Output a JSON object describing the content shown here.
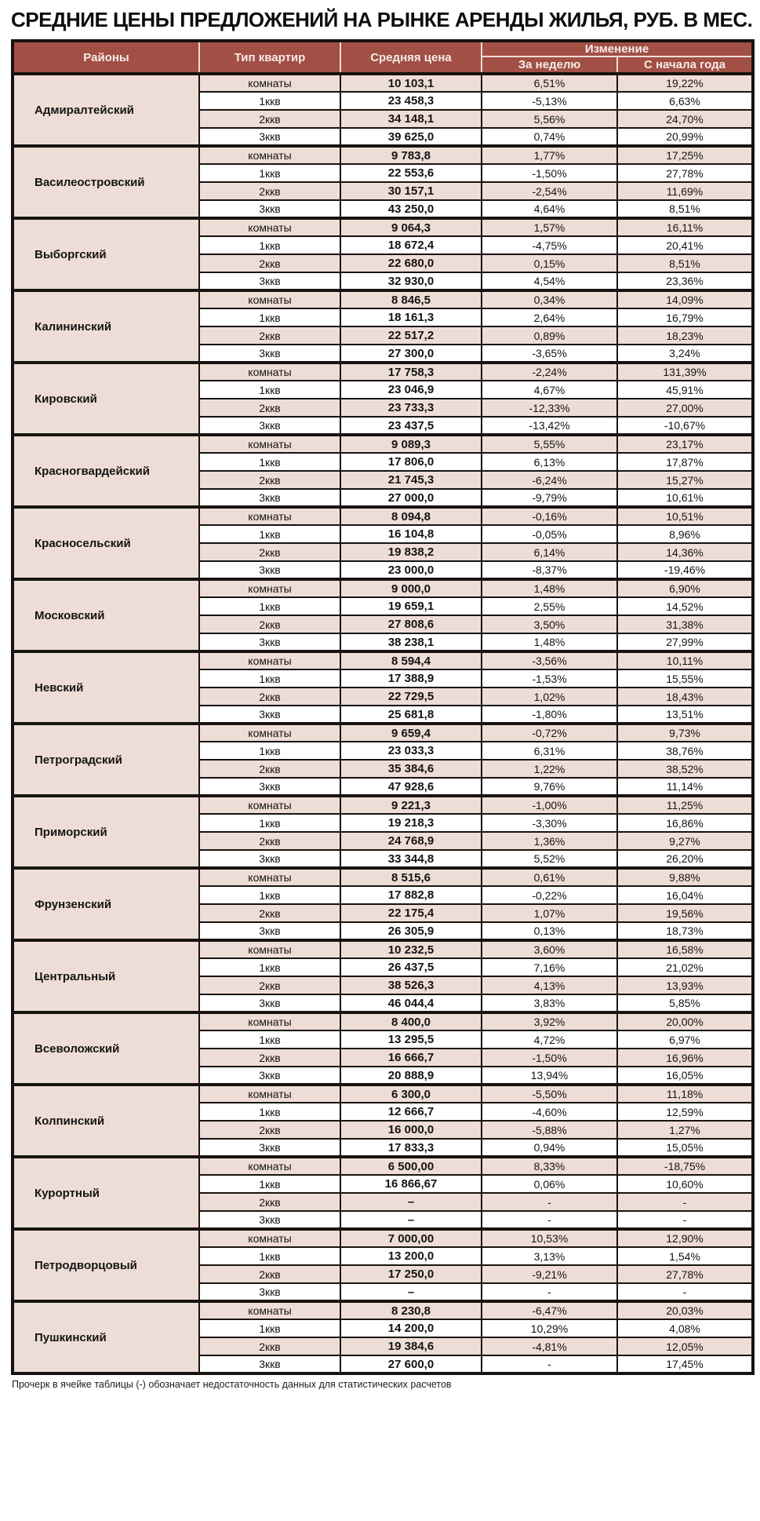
{
  "title": "СРЕДНИЕ ЦЕНЫ ПРЕДЛОЖЕНИЙ НА РЫНКЕ АРЕНДЫ ЖИЛЬЯ, РУБ. В МЕС.",
  "footnote": "Прочерк в ячейке таблицы (-) обозначает недостаточность данных для статистических расчетов",
  "colors": {
    "header_bg": "#a24f46",
    "header_text": "#f6ece7",
    "row_pink": "#eeddd6",
    "row_white": "#ffffff",
    "border_dark": "#171310"
  },
  "table": {
    "headers": {
      "district": "Районы",
      "apartment_type": "Тип квартир",
      "avg_price": "Средняя цена",
      "change_group": "Изменение",
      "change_week": "За неделю",
      "change_ytd": "С начала года"
    },
    "row_types": [
      "комнаты",
      "1ккв",
      "2ккв",
      "3ккв"
    ],
    "districts": [
      {
        "name": "Адмиралтейский",
        "rows": [
          [
            "10 103,1",
            "6,51%",
            "19,22%"
          ],
          [
            "23 458,3",
            "-5,13%",
            "6,63%"
          ],
          [
            "34 148,1",
            "5,56%",
            "24,70%"
          ],
          [
            "39 625,0",
            "0,74%",
            "20,99%"
          ]
        ]
      },
      {
        "name": "Василеостровский",
        "rows": [
          [
            "9 783,8",
            "1,77%",
            "17,25%"
          ],
          [
            "22 553,6",
            "-1,50%",
            "27,78%"
          ],
          [
            "30 157,1",
            "-2,54%",
            "11,69%"
          ],
          [
            "43 250,0",
            "4,64%",
            "8,51%"
          ]
        ]
      },
      {
        "name": "Выборгский",
        "rows": [
          [
            "9 064,3",
            "1,57%",
            "16,11%"
          ],
          [
            "18 672,4",
            "-4,75%",
            "20,41%"
          ],
          [
            "22 680,0",
            "0,15%",
            "8,51%"
          ],
          [
            "32 930,0",
            "4,54%",
            "23,36%"
          ]
        ]
      },
      {
        "name": "Калининский",
        "rows": [
          [
            "8 846,5",
            "0,34%",
            "14,09%"
          ],
          [
            "18 161,3",
            "2,64%",
            "16,79%"
          ],
          [
            "22 517,2",
            "0,89%",
            "18,23%"
          ],
          [
            "27 300,0",
            "-3,65%",
            "3,24%"
          ]
        ]
      },
      {
        "name": "Кировский",
        "rows": [
          [
            "17 758,3",
            "-2,24%",
            "131,39%"
          ],
          [
            "23 046,9",
            "4,67%",
            "45,91%"
          ],
          [
            "23 733,3",
            "-12,33%",
            "27,00%"
          ],
          [
            "23 437,5",
            "-13,42%",
            "-10,67%"
          ]
        ]
      },
      {
        "name": "Красногвардейский",
        "rows": [
          [
            "9 089,3",
            "5,55%",
            "23,17%"
          ],
          [
            "17 806,0",
            "6,13%",
            "17,87%"
          ],
          [
            "21 745,3",
            "-6,24%",
            "15,27%"
          ],
          [
            "27 000,0",
            "-9,79%",
            "10,61%"
          ]
        ]
      },
      {
        "name": "Красносельский",
        "rows": [
          [
            "8 094,8",
            "-0,16%",
            "10,51%"
          ],
          [
            "16 104,8",
            "-0,05%",
            "8,96%"
          ],
          [
            "19 838,2",
            "6,14%",
            "14,36%"
          ],
          [
            "23 000,0",
            "-8,37%",
            "-19,46%"
          ]
        ]
      },
      {
        "name": "Московский",
        "rows": [
          [
            "9 000,0",
            "1,48%",
            "6,90%"
          ],
          [
            "19 659,1",
            "2,55%",
            "14,52%"
          ],
          [
            "27 808,6",
            "3,50%",
            "31,38%"
          ],
          [
            "38 238,1",
            "1,48%",
            "27,99%"
          ]
        ]
      },
      {
        "name": "Невский",
        "rows": [
          [
            "8 594,4",
            "-3,56%",
            "10,11%"
          ],
          [
            "17 388,9",
            "-1,53%",
            "15,55%"
          ],
          [
            "22 729,5",
            "1,02%",
            "18,43%"
          ],
          [
            "25 681,8",
            "-1,80%",
            "13,51%"
          ]
        ]
      },
      {
        "name": "Петроградский",
        "rows": [
          [
            "9 659,4",
            "-0,72%",
            "9,73%"
          ],
          [
            "23 033,3",
            "6,31%",
            "38,76%"
          ],
          [
            "35 384,6",
            "1,22%",
            "38,52%"
          ],
          [
            "47 928,6",
            "9,76%",
            "11,14%"
          ]
        ]
      },
      {
        "name": "Приморский",
        "rows": [
          [
            "9 221,3",
            "-1,00%",
            "11,25%"
          ],
          [
            "19 218,3",
            "-3,30%",
            "16,86%"
          ],
          [
            "24 768,9",
            "1,36%",
            "9,27%"
          ],
          [
            "33 344,8",
            "5,52%",
            "26,20%"
          ]
        ]
      },
      {
        "name": "Фрунзенский",
        "rows": [
          [
            "8 515,6",
            "0,61%",
            "9,88%"
          ],
          [
            "17 882,8",
            "-0,22%",
            "16,04%"
          ],
          [
            "22 175,4",
            "1,07%",
            "19,56%"
          ],
          [
            "26 305,9",
            "0,13%",
            "18,73%"
          ]
        ]
      },
      {
        "name": "Центральный",
        "rows": [
          [
            "10 232,5",
            "3,60%",
            "16,58%"
          ],
          [
            "26 437,5",
            "7,16%",
            "21,02%"
          ],
          [
            "38 526,3",
            "4,13%",
            "13,93%"
          ],
          [
            "46 044,4",
            "3,83%",
            "5,85%"
          ]
        ]
      },
      {
        "name": "Всеволожский",
        "rows": [
          [
            "8 400,0",
            "3,92%",
            "20,00%"
          ],
          [
            "13 295,5",
            "4,72%",
            "6,97%"
          ],
          [
            "16 666,7",
            "-1,50%",
            "16,96%"
          ],
          [
            "20 888,9",
            "13,94%",
            "16,05%"
          ]
        ]
      },
      {
        "name": "Колпинский",
        "rows": [
          [
            "6 300,0",
            "-5,50%",
            "11,18%"
          ],
          [
            "12 666,7",
            "-4,60%",
            "12,59%"
          ],
          [
            "16 000,0",
            "-5,88%",
            "1,27%"
          ],
          [
            "17 833,3",
            "0,94%",
            "15,05%"
          ]
        ]
      },
      {
        "name": "Курортный",
        "rows": [
          [
            "6 500,00",
            "8,33%",
            "-18,75%"
          ],
          [
            "16 866,67",
            "0,06%",
            "10,60%"
          ],
          [
            "–",
            "-",
            "-"
          ],
          [
            "–",
            "-",
            "-"
          ]
        ]
      },
      {
        "name": "Петродворцовый",
        "rows": [
          [
            "7 000,00",
            "10,53%",
            "12,90%"
          ],
          [
            "13 200,0",
            "3,13%",
            "1,54%"
          ],
          [
            "17 250,0",
            "-9,21%",
            "27,78%"
          ],
          [
            "–",
            "-",
            "-"
          ]
        ]
      },
      {
        "name": "Пушкинский",
        "rows": [
          [
            "8 230,8",
            "-6,47%",
            "20,03%"
          ],
          [
            "14 200,0",
            "10,29%",
            "4,08%"
          ],
          [
            "19 384,6",
            "-4,81%",
            "12,05%"
          ],
          [
            "27 600,0",
            "-",
            "17,45%"
          ]
        ]
      }
    ]
  }
}
